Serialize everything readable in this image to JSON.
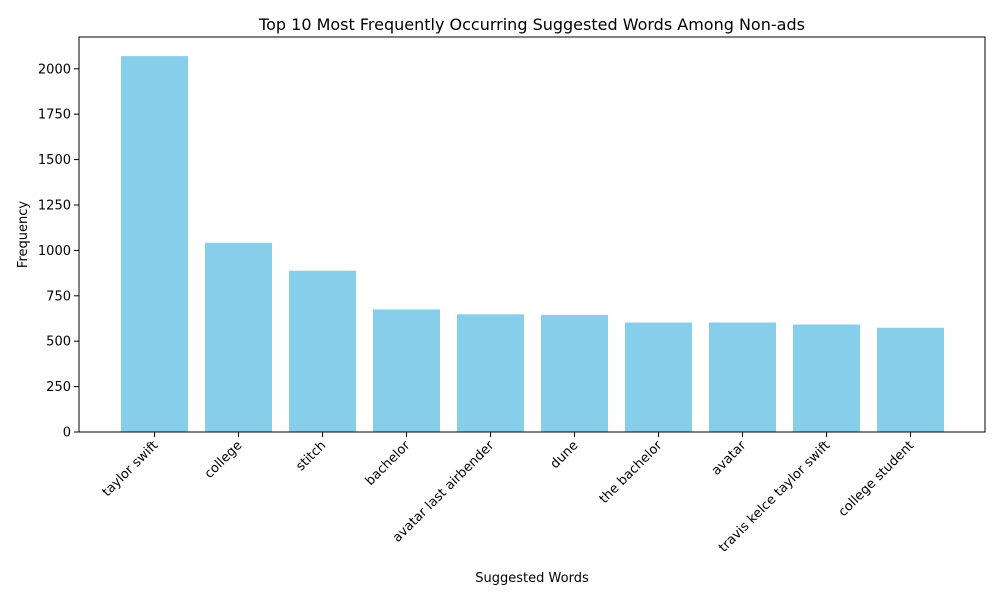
{
  "chart_data": {
    "type": "bar",
    "title": "Top 10 Most Frequently Occurring Suggested Words Among Non-ads",
    "xlabel": "Suggested Words",
    "ylabel": "Frequency",
    "categories": [
      "taylor swift",
      "college",
      "stitch",
      "bachelor",
      "avatar last airbender",
      "dune",
      "the bachelor",
      "avatar",
      "travis kelce taylor swift",
      "college student"
    ],
    "values": [
      2070,
      1042,
      888,
      675,
      648,
      645,
      603,
      603,
      592,
      574
    ],
    "ylim": [
      0,
      2175
    ],
    "yticks": [
      0,
      250,
      500,
      750,
      1000,
      1250,
      1500,
      1750,
      2000
    ],
    "bar_color": "#87ceeb",
    "grid": false,
    "legend": "none"
  }
}
